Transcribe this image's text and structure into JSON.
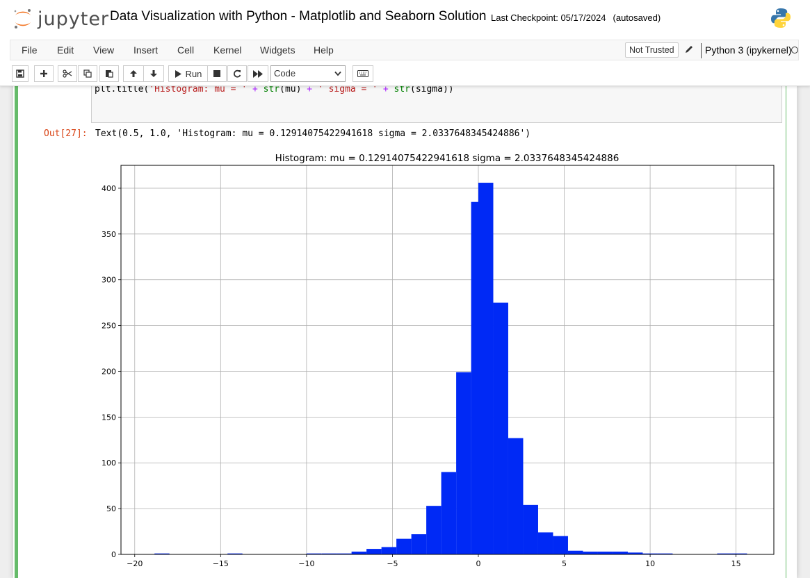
{
  "header": {
    "logo_text": "jupyter",
    "notebook_title": "Data Visualization with Python - Matplotlib and Seaborn Solution",
    "checkpoint_label": "Last Checkpoint: 05/17/2024",
    "autosave_status": "(autosaved)"
  },
  "menubar": {
    "items": [
      "File",
      "Edit",
      "View",
      "Insert",
      "Cell",
      "Kernel",
      "Widgets",
      "Help"
    ],
    "trust_status": "Not Trusted",
    "kernel_name": "Python 3 (ipykernel)"
  },
  "toolbar": {
    "run_label": "Run",
    "cell_type": "Code",
    "buttons": [
      "save-icon",
      "plus-icon",
      "cut-icon",
      "copy-icon",
      "paste-icon",
      "arrow-up-icon",
      "arrow-down-icon",
      "play-icon",
      "stop-icon",
      "restart-icon",
      "fast-forward-icon",
      "keyboard-icon"
    ]
  },
  "cell": {
    "code_tokens": {
      "t1": "plt.title(",
      "t2": "'Histogram: mu = '",
      "t3": " + ",
      "t4": "str",
      "t5": "(mu) ",
      "t6": "+",
      "t7": " ",
      "t8": "' sigma = '",
      "t9": " + ",
      "t10": "str",
      "t11": "(sigma))"
    },
    "out_prompt": "Out[27]:",
    "output_text": "Text(0.5, 1.0, 'Histogram: mu = 0.12914075422941618 sigma = 2.0337648345424886')"
  },
  "colors": {
    "bar_fill": "#0029f5",
    "cell_border": "#66bb6a",
    "out_prompt": "#d84315"
  },
  "chart_data": {
    "type": "bar",
    "title": "Histogram: mu = 0.12914075422941618 sigma = 2.0337648345424886",
    "xlabel": "",
    "ylabel": "",
    "xlim": [
      -20.8,
      17.2
    ],
    "ylim": [
      0,
      425
    ],
    "xticks": [
      -20,
      -15,
      -10,
      -5,
      0,
      5,
      10,
      15
    ],
    "yticks": [
      0,
      50,
      100,
      150,
      200,
      250,
      300,
      350,
      400
    ],
    "grid": true,
    "bin_width": 0.87,
    "bins": [
      {
        "x0": -18.85,
        "value": 1
      },
      {
        "x0": -14.6,
        "value": 1
      },
      {
        "x0": -10.0,
        "value": 1
      },
      {
        "x0": -9.12,
        "value": 1
      },
      {
        "x0": -8.25,
        "value": 1
      },
      {
        "x0": -7.38,
        "value": 3
      },
      {
        "x0": -6.51,
        "value": 6
      },
      {
        "x0": -5.64,
        "value": 8
      },
      {
        "x0": -4.77,
        "value": 17
      },
      {
        "x0": -3.9,
        "value": 22
      },
      {
        "x0": -3.03,
        "value": 53
      },
      {
        "x0": -2.16,
        "value": 90
      },
      {
        "x0": -1.29,
        "value": 199
      },
      {
        "x0": -0.42,
        "value": 385
      },
      {
        "x0": 0.0,
        "value": 406
      },
      {
        "x0": 0.87,
        "value": 275
      },
      {
        "x0": 1.74,
        "value": 127
      },
      {
        "x0": 2.61,
        "value": 54
      },
      {
        "x0": 3.48,
        "value": 24
      },
      {
        "x0": 4.35,
        "value": 20
      },
      {
        "x0": 5.22,
        "value": 4
      },
      {
        "x0": 6.09,
        "value": 3
      },
      {
        "x0": 6.96,
        "value": 3
      },
      {
        "x0": 7.83,
        "value": 3
      },
      {
        "x0": 8.7,
        "value": 2
      },
      {
        "x0": 9.57,
        "value": 1
      },
      {
        "x0": 10.44,
        "value": 1
      },
      {
        "x0": 13.9,
        "value": 1
      },
      {
        "x0": 14.77,
        "value": 1
      }
    ]
  }
}
